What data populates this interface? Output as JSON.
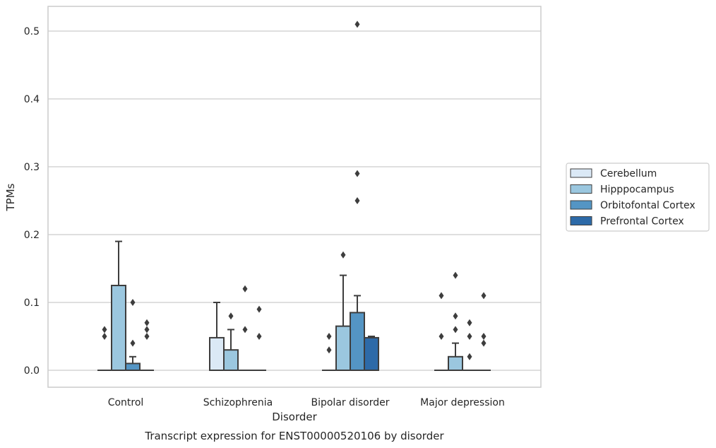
{
  "chart_data": {
    "type": "box",
    "title": "",
    "caption": "Transcript expression for ENST00000520106 by disorder",
    "xlabel": "Disorder",
    "ylabel": "TPMs",
    "ylim": [
      -0.025,
      0.537
    ],
    "yticks": [
      0.0,
      0.1,
      0.2,
      0.3,
      0.4,
      0.5
    ],
    "ytick_labels": [
      "0.0",
      "0.1",
      "0.2",
      "0.3",
      "0.4",
      "0.5"
    ],
    "grid": "horizontal",
    "legend_position": "right",
    "categories": [
      "Control",
      "Schizophrenia",
      "Bipolar disorder",
      "Major depression"
    ],
    "series": [
      {
        "name": "Cerebellum",
        "color": "#dbe9f6",
        "boxes": [
          {
            "q1": 0,
            "median": 0,
            "q3": 0,
            "whisker_low": 0,
            "whisker_high": 0,
            "outliers": [
              0.05,
              0.06
            ]
          },
          {
            "q1": 0,
            "median": 0,
            "q3": 0.048,
            "whisker_low": 0,
            "whisker_high": 0.1,
            "outliers": []
          },
          {
            "q1": 0,
            "median": 0,
            "q3": 0,
            "whisker_low": 0,
            "whisker_high": 0,
            "outliers": [
              0.03,
              0.05
            ]
          },
          {
            "q1": 0,
            "median": 0,
            "q3": 0,
            "whisker_low": 0,
            "whisker_high": 0,
            "outliers": [
              0.05,
              0.11
            ]
          }
        ]
      },
      {
        "name": "Hipppocampus",
        "color": "#9bc7df",
        "boxes": [
          {
            "q1": 0,
            "median": 0,
            "q3": 0.125,
            "whisker_low": 0,
            "whisker_high": 0.19,
            "outliers": []
          },
          {
            "q1": 0,
            "median": 0,
            "q3": 0.03,
            "whisker_low": 0,
            "whisker_high": 0.06,
            "outliers": [
              0.08
            ]
          },
          {
            "q1": 0,
            "median": 0,
            "q3": 0.065,
            "whisker_low": 0,
            "whisker_high": 0.14,
            "outliers": [
              0.17
            ]
          },
          {
            "q1": 0,
            "median": 0,
            "q3": 0.02,
            "whisker_low": 0,
            "whisker_high": 0.04,
            "outliers": [
              0.06,
              0.08,
              0.14
            ]
          }
        ]
      },
      {
        "name": "Orbitofontal Cortex",
        "color": "#5495c4",
        "boxes": [
          {
            "q1": 0,
            "median": 0,
            "q3": 0.01,
            "whisker_low": 0,
            "whisker_high": 0.02,
            "outliers": [
              0.04,
              0.1
            ]
          },
          {
            "q1": 0,
            "median": 0,
            "q3": 0,
            "whisker_low": 0,
            "whisker_high": 0,
            "outliers": [
              0.06,
              0.12
            ]
          },
          {
            "q1": 0,
            "median": 0,
            "q3": 0.085,
            "whisker_low": 0,
            "whisker_high": 0.11,
            "outliers": [
              0.25,
              0.29,
              0.51
            ]
          },
          {
            "q1": 0,
            "median": 0,
            "q3": 0,
            "whisker_low": 0,
            "whisker_high": 0,
            "outliers": [
              0.02,
              0.05,
              0.07
            ]
          }
        ]
      },
      {
        "name": "Prefrontal Cortex",
        "color": "#2d6aa8",
        "boxes": [
          {
            "q1": 0,
            "median": 0,
            "q3": 0,
            "whisker_low": 0,
            "whisker_high": 0,
            "outliers": [
              0.05,
              0.06,
              0.07
            ]
          },
          {
            "q1": 0,
            "median": 0,
            "q3": 0,
            "whisker_low": 0,
            "whisker_high": 0,
            "outliers": [
              0.05,
              0.09
            ]
          },
          {
            "q1": 0,
            "median": 0,
            "q3": 0.048,
            "whisker_low": 0,
            "whisker_high": 0.05,
            "outliers": []
          },
          {
            "q1": 0,
            "median": 0,
            "q3": 0,
            "whisker_low": 0,
            "whisker_high": 0,
            "outliers": [
              0.04,
              0.05,
              0.11
            ]
          }
        ]
      }
    ]
  }
}
